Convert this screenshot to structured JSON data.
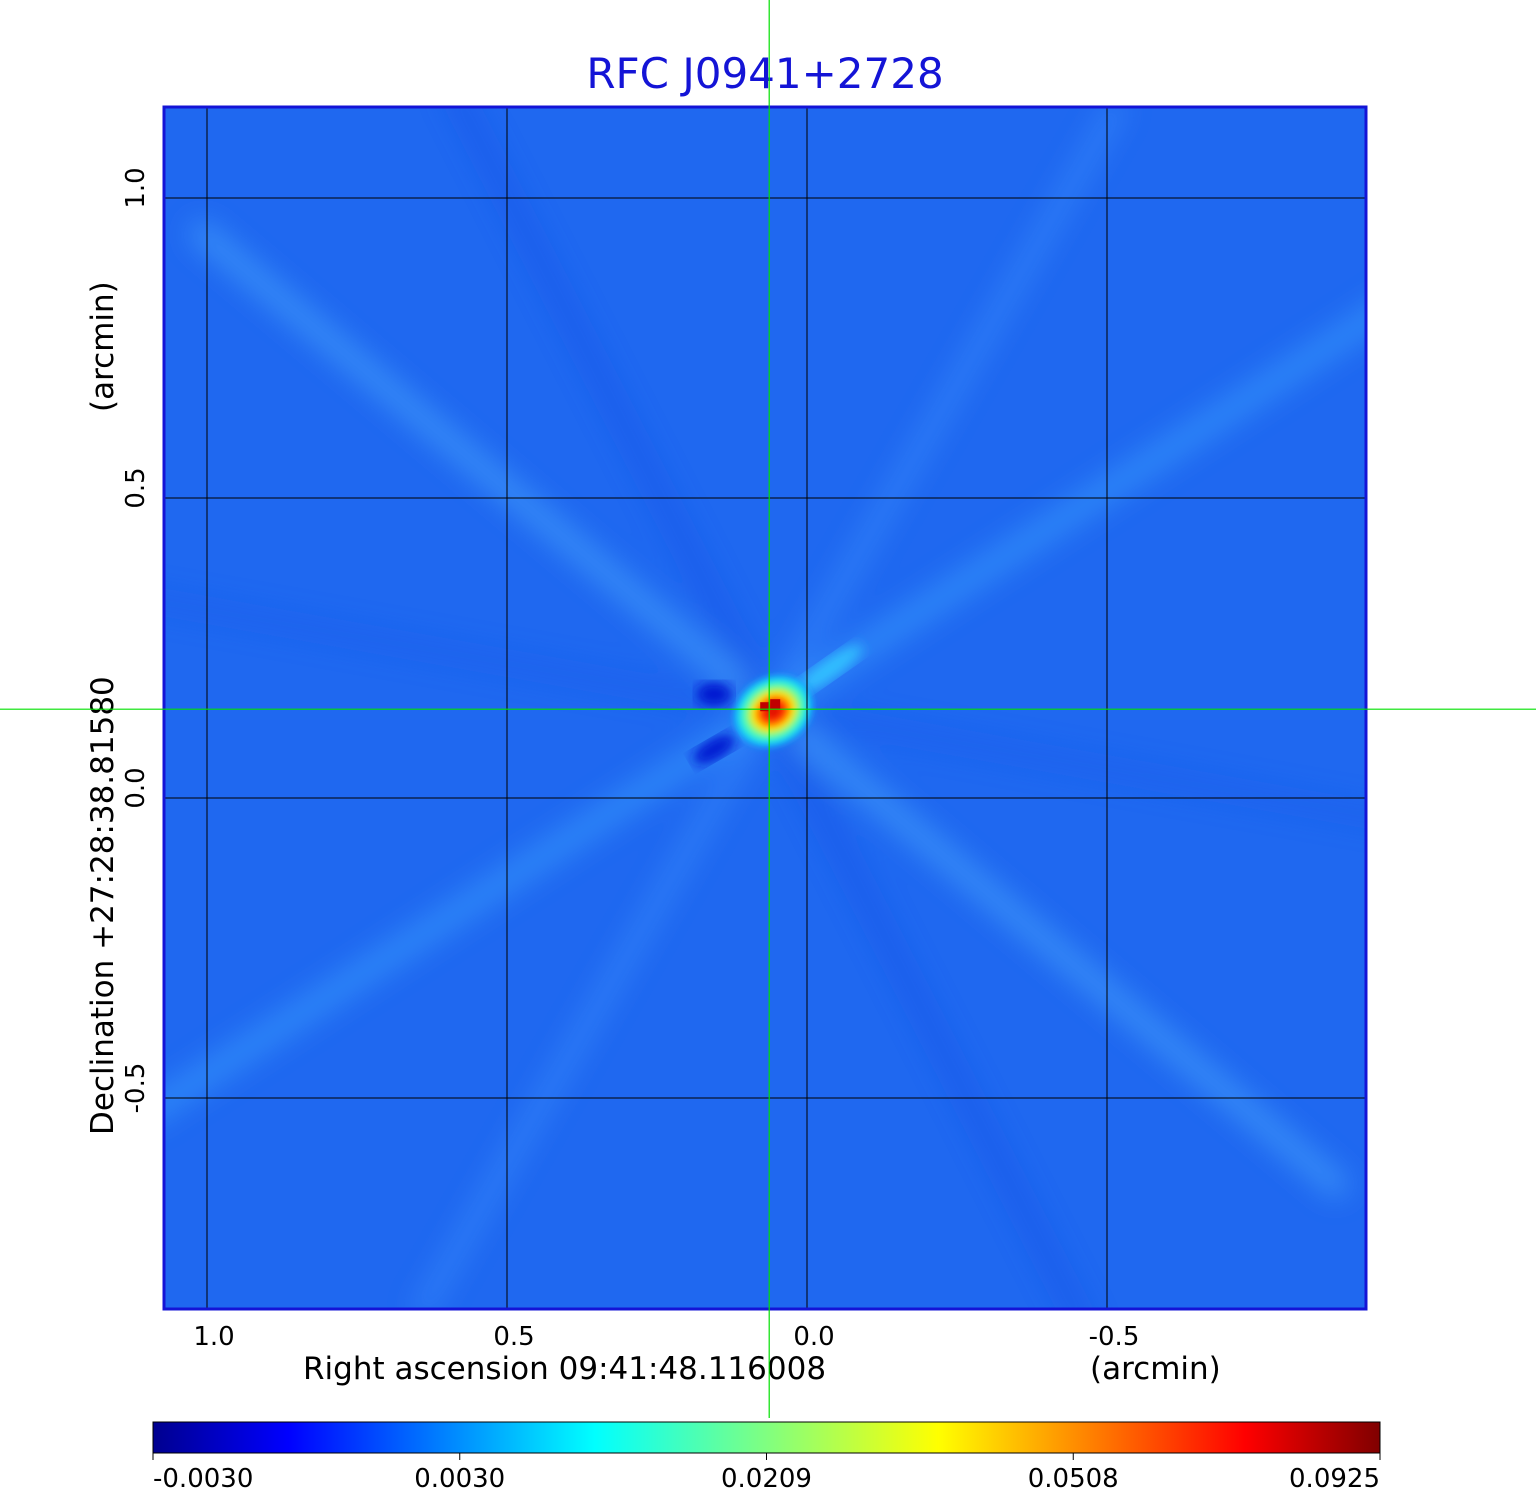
{
  "chart_data": {
    "type": "heatmap",
    "title": "RFC J0941+2728",
    "xlabel": "Right ascension  09:41:48.116008",
    "xunit": "(arcmin)",
    "ylabel": "Declination  +27:28:38.81580",
    "yunit": "(arcmin)",
    "x_ticks": [
      "1.0",
      "0.5",
      "0.0",
      "-0.5"
    ],
    "x_tick_values": [
      1.0,
      0.5,
      0.0,
      -0.5
    ],
    "y_ticks": [
      "1.0",
      "0.5",
      "0.0",
      "-0.5"
    ],
    "y_tick_values": [
      1.0,
      0.5,
      0.0,
      -0.5
    ],
    "xlim": [
      1.07,
      -0.93
    ],
    "ylim": [
      -0.85,
      1.15
    ],
    "grid": true,
    "crosshair": {
      "x": 0.063,
      "y": 0.148,
      "color": "#00e000"
    },
    "source": {
      "x": 0.063,
      "y": 0.148,
      "peak": 0.0925
    },
    "colorbar": {
      "ticks": [
        "-0.0030",
        "0.0030",
        "0.0209",
        "0.0508",
        "0.0925"
      ],
      "min": -0.003,
      "max": 0.0925,
      "colormap": "jet"
    },
    "colors": {
      "background_field": "#1f68f0",
      "title": "#1414d6",
      "frame": "#1414d6"
    }
  }
}
